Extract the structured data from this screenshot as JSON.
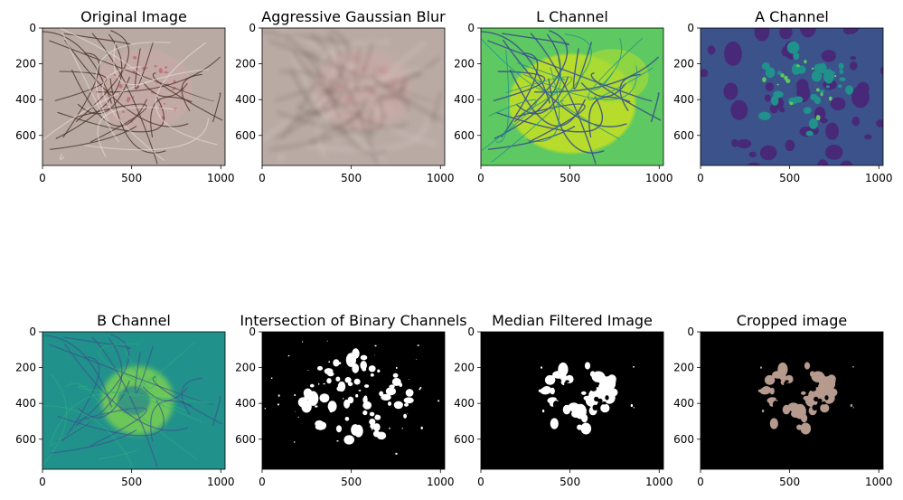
{
  "figure": {
    "panels": [
      {
        "id": "p1",
        "title": "Original Image",
        "render": "original",
        "xticks": [
          "0",
          "500",
          "1000"
        ],
        "yticks": [
          "0",
          "200",
          "400",
          "600"
        ]
      },
      {
        "id": "p2",
        "title": "Aggressive Gaussian Blur",
        "render": "blurred",
        "xticks": [
          "0",
          "500",
          "1000"
        ],
        "yticks": [
          "0",
          "200",
          "400",
          "600"
        ]
      },
      {
        "id": "p3",
        "title": "L Channel",
        "render": "l-channel",
        "xticks": [
          "0",
          "500",
          "1000"
        ],
        "yticks": [
          "0",
          "200",
          "400",
          "600"
        ]
      },
      {
        "id": "p4",
        "title": "A Channel",
        "render": "a-channel",
        "xticks": [
          "0",
          "500",
          "1000"
        ],
        "yticks": [
          "0",
          "200",
          "400",
          "600"
        ]
      },
      {
        "id": "p5",
        "title": "B Channel",
        "render": "b-channel",
        "xticks": [
          "0",
          "500",
          "1000"
        ],
        "yticks": [
          "0",
          "200",
          "400",
          "600"
        ]
      },
      {
        "id": "p6",
        "title": "Intersection of Binary Channels",
        "render": "binary",
        "xticks": [
          "0",
          "500",
          "1000"
        ],
        "yticks": [
          "0",
          "200",
          "400",
          "600"
        ]
      },
      {
        "id": "p7",
        "title": "Median Filtered Image",
        "render": "median",
        "xticks": [
          "0",
          "500",
          "1000"
        ],
        "yticks": [
          "0",
          "200",
          "400",
          "600"
        ]
      },
      {
        "id": "p8",
        "title": "Cropped image",
        "render": "cropped",
        "xticks": [
          "0",
          "500",
          "1000"
        ],
        "yticks": [
          "0",
          "200",
          "400",
          "600"
        ]
      }
    ],
    "colors": {
      "skin": "#b9aba4",
      "hair": "#4a3128",
      "lesion": "#c0747a",
      "viridis_dark": "#440154",
      "viridis_blue": "#3b528b",
      "viridis_teal": "#21918c",
      "viridis_green": "#5ec962",
      "viridis_yellow": "#fde725",
      "mask": "#ffffff",
      "background": "#000000",
      "cropped_skin": "#b69a8e"
    }
  }
}
